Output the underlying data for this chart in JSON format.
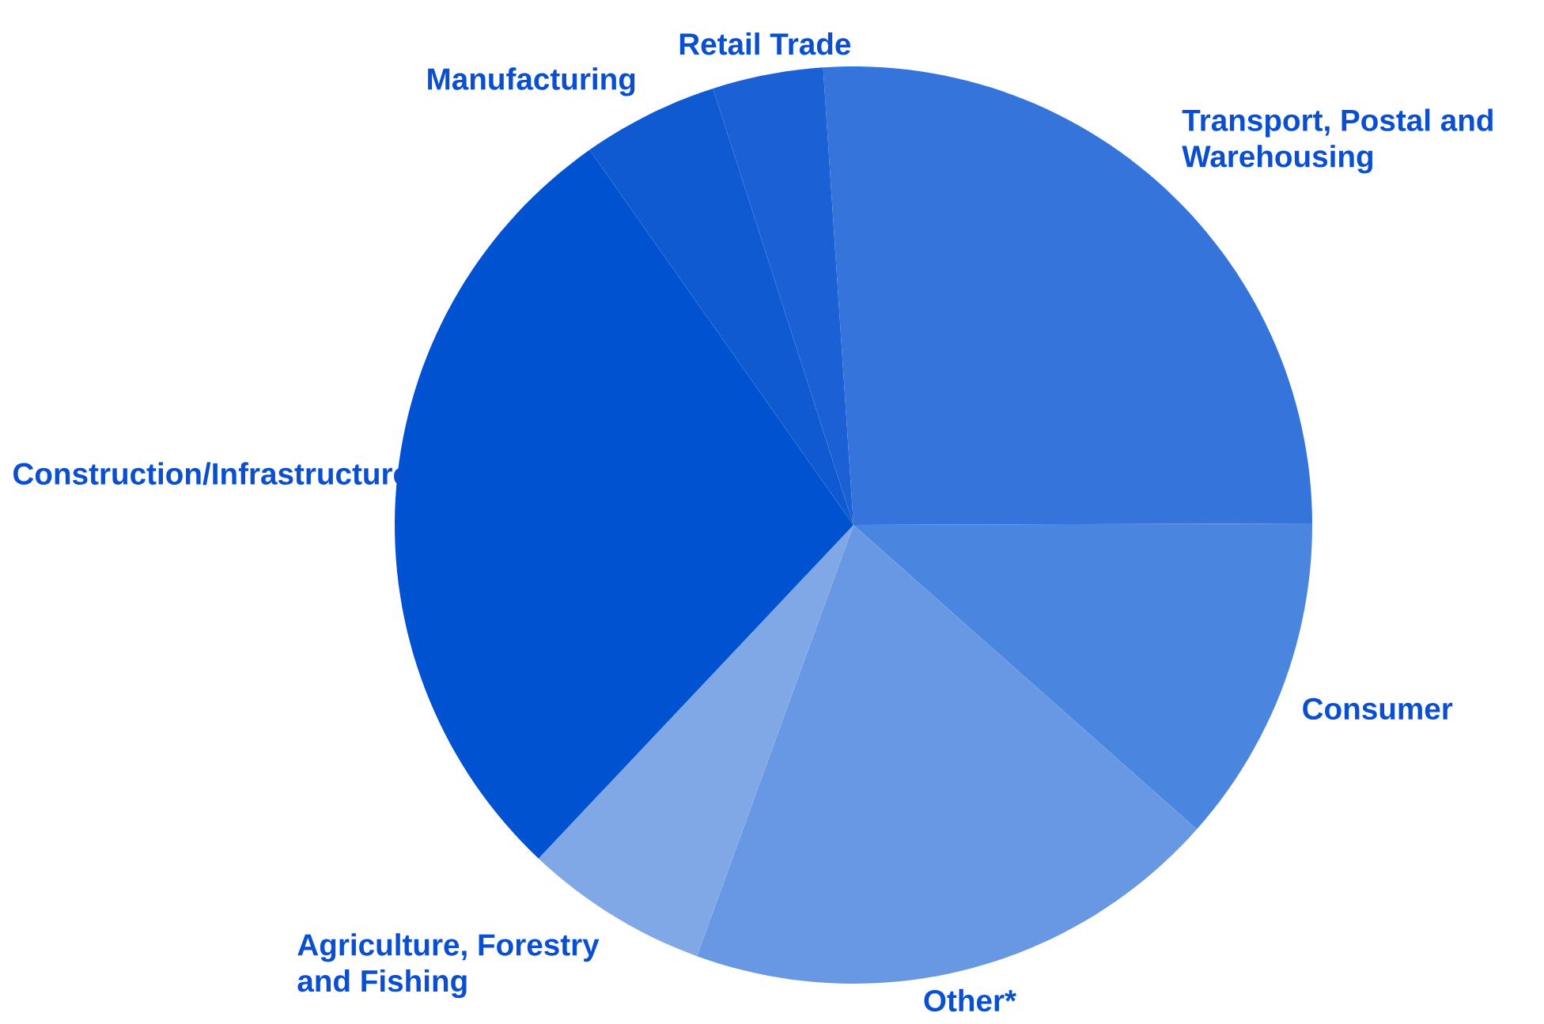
{
  "chart_data": {
    "type": "pie",
    "categories": [
      "Transport, Postal and Warehousing",
      "Consumer",
      "Other*",
      "Agriculture, Forestry and Fishing",
      "Construction/Infrastructure",
      "Manufacturing",
      "Retail Trade"
    ],
    "values": [
      26.0,
      11.6,
      19.0,
      6.5,
      28.2,
      4.8,
      3.9
    ],
    "colors": [
      "#3574db",
      "#4a86e0",
      "#6898e3",
      "#80a8e6",
      "#0052d0",
      "#0f5ad1",
      "#1b60d4"
    ]
  }
}
